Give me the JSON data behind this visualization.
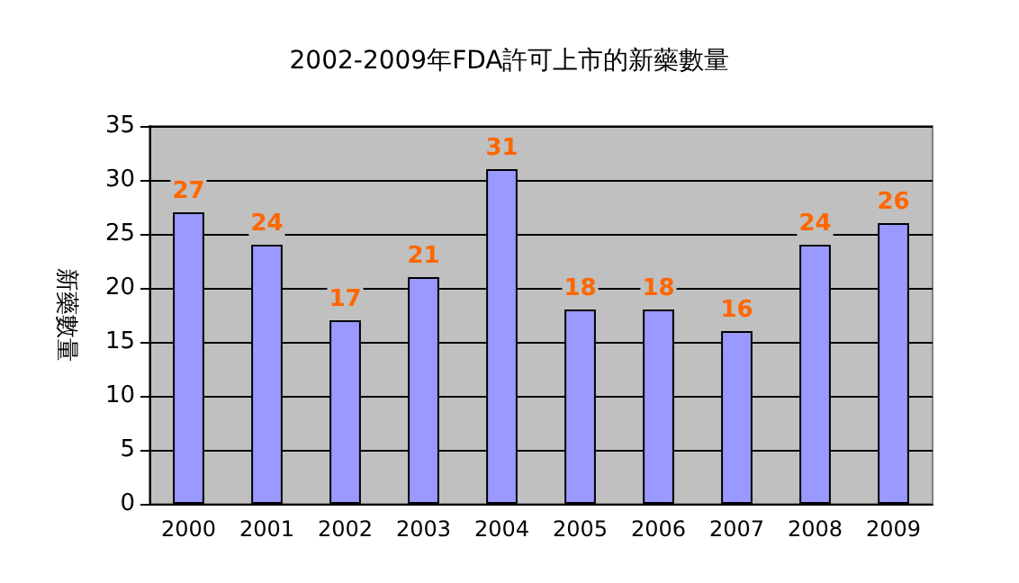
{
  "chart_data": {
    "type": "bar",
    "title": "2002-2009年FDA許可上市的新藥數量",
    "ylabel": "新藥數量",
    "categories": [
      "2000",
      "2001",
      "2002",
      "2003",
      "2004",
      "2005",
      "2006",
      "2007",
      "2008",
      "2009"
    ],
    "values": [
      27,
      24,
      17,
      21,
      31,
      18,
      18,
      16,
      24,
      26
    ],
    "color": "#9999ff",
    "ylim": [
      0,
      35
    ],
    "yticks": [
      0,
      5,
      10,
      15,
      20,
      25,
      30,
      35
    ],
    "grid": "y",
    "data_labels": true
  }
}
